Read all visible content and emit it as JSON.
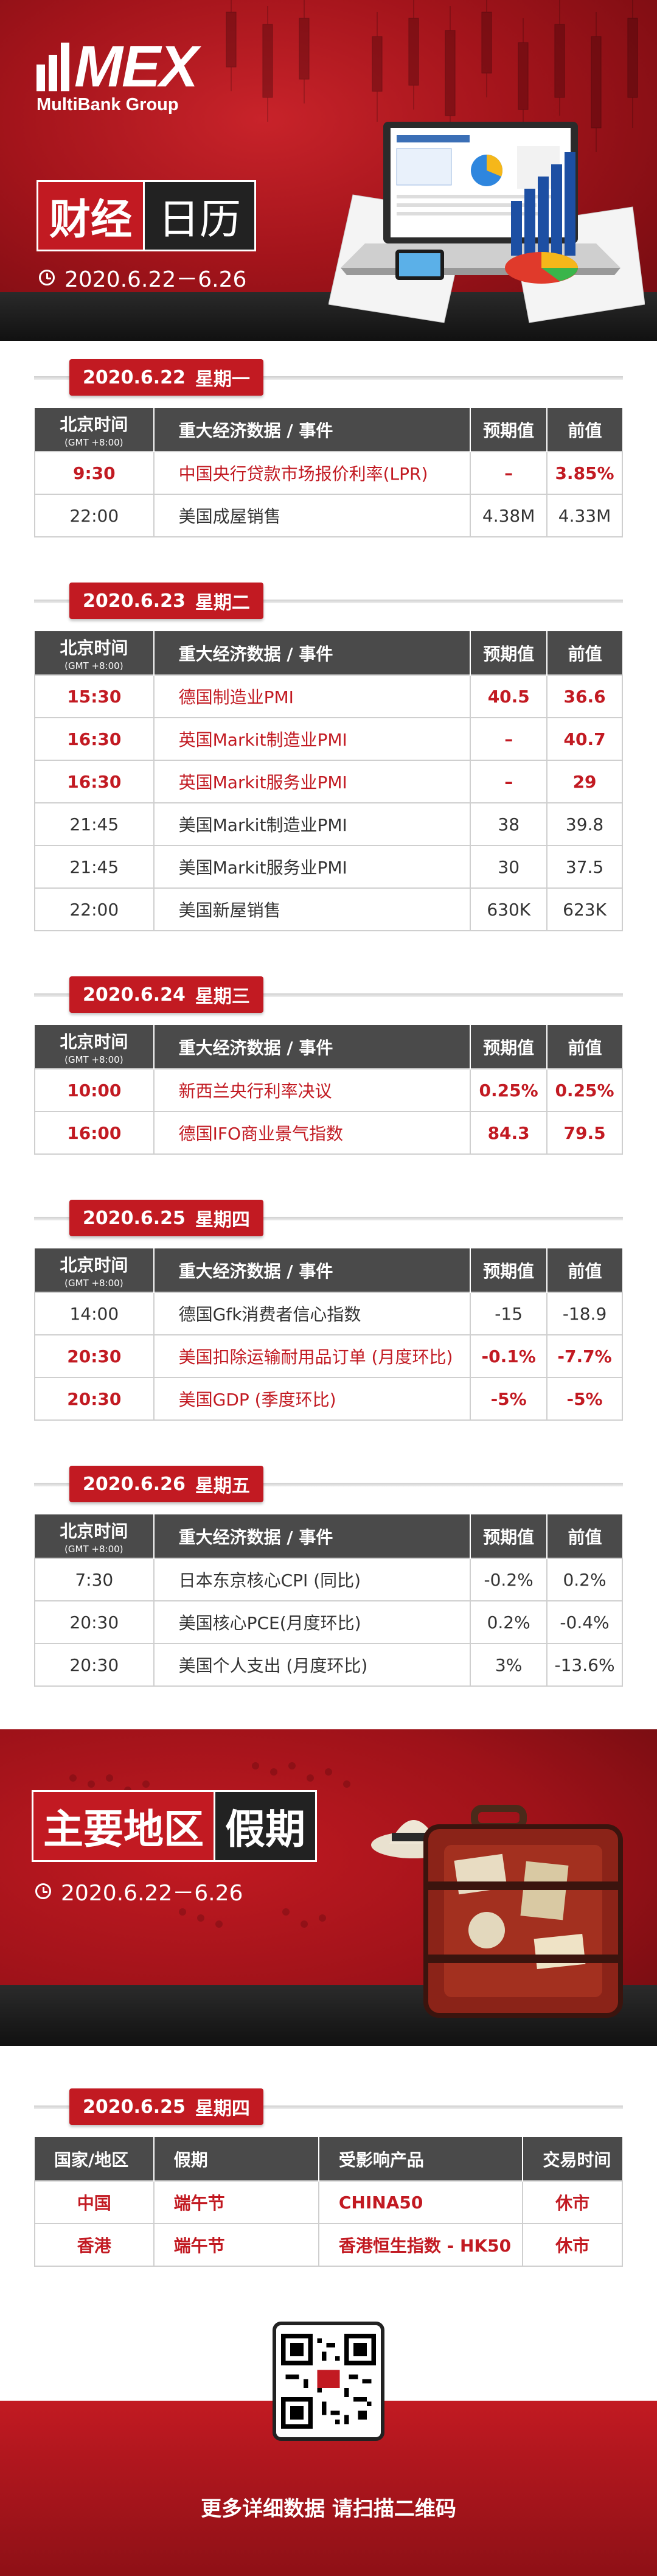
{
  "header": {
    "logo_text": "MEX",
    "logo_sub": "MultiBank Group",
    "title_part1": "财经",
    "title_part2": "日历",
    "date_range": "2020.6.22－6.26"
  },
  "table_headers": {
    "time": "北京时间",
    "gmt": "(GMT +8:00)",
    "event": "重大经济数据 / 事件",
    "forecast": "预期值",
    "previous": "前值"
  },
  "days": [
    {
      "date": "2020.6.22",
      "weekday": "星期一",
      "rows": [
        {
          "time": "9:30",
          "event": "中国央行贷款市场报价利率(LPR)",
          "forecast": "–",
          "previous": "3.85%",
          "highlight": true
        },
        {
          "time": "22:00",
          "event": "美国成屋销售",
          "forecast": "4.38M",
          "previous": "4.33M",
          "highlight": false
        }
      ]
    },
    {
      "date": "2020.6.23",
      "weekday": "星期二",
      "rows": [
        {
          "time": "15:30",
          "event": "德国制造业PMI",
          "forecast": "40.5",
          "previous": "36.6",
          "highlight": true
        },
        {
          "time": "16:30",
          "event": "英国Markit制造业PMI",
          "forecast": "–",
          "previous": "40.7",
          "highlight": true
        },
        {
          "time": "16:30",
          "event": "英国Markit服务业PMI",
          "forecast": "–",
          "previous": "29",
          "highlight": true
        },
        {
          "time": "21:45",
          "event": "美国Markit制造业PMI",
          "forecast": "38",
          "previous": "39.8",
          "highlight": false
        },
        {
          "time": "21:45",
          "event": "美国Markit服务业PMI",
          "forecast": "30",
          "previous": "37.5",
          "highlight": false
        },
        {
          "time": "22:00",
          "event": "美国新屋销售",
          "forecast": "630K",
          "previous": "623K",
          "highlight": false
        }
      ]
    },
    {
      "date": "2020.6.24",
      "weekday": "星期三",
      "rows": [
        {
          "time": "10:00",
          "event": "新西兰央行利率决议",
          "forecast": "0.25%",
          "previous": "0.25%",
          "highlight": true
        },
        {
          "time": "16:00",
          "event": "德国IFO商业景气指数",
          "forecast": "84.3",
          "previous": "79.5",
          "highlight": true
        }
      ]
    },
    {
      "date": "2020.6.25",
      "weekday": "星期四",
      "rows": [
        {
          "time": "14:00",
          "event": "德国Gfk消费者信心指数",
          "forecast": "-15",
          "previous": "-18.9",
          "highlight": false
        },
        {
          "time": "20:30",
          "event": "美国扣除运输耐用品订单 (月度环比)",
          "forecast": "-0.1%",
          "previous": "-7.7%",
          "highlight": true
        },
        {
          "time": "20:30",
          "event": "美国GDP (季度环比)",
          "forecast": "-5%",
          "previous": "-5%",
          "highlight": true
        }
      ]
    },
    {
      "date": "2020.6.26",
      "weekday": "星期五",
      "rows": [
        {
          "time": "7:30",
          "event": "日本东京核心CPI (同比)",
          "forecast": "-0.2%",
          "previous": "0.2%",
          "highlight": false
        },
        {
          "time": "20:30",
          "event": "美国核心PCE(月度环比)",
          "forecast": "0.2%",
          "previous": "-0.4%",
          "highlight": false
        },
        {
          "time": "20:30",
          "event": "美国个人支出 (月度环比)",
          "forecast": "3%",
          "previous": "-13.6%",
          "highlight": false
        }
      ]
    }
  ],
  "holiday_banner": {
    "title_part1": "主要地区",
    "title_part2": "假期",
    "date_range": "2020.6.22－6.26"
  },
  "holiday_section": {
    "date": "2020.6.25",
    "weekday": "星期四",
    "headers": {
      "region": "国家/地区",
      "holiday": "假期",
      "product": "受影响产品",
      "trading": "交易时间"
    },
    "rows": [
      {
        "region": "中国",
        "holiday": "端午节",
        "product": "CHINA50",
        "trading": "休市"
      },
      {
        "region": "香港",
        "holiday": "端午节",
        "product": "香港恒生指数 - HK50",
        "trading": "休市"
      }
    ]
  },
  "footer": {
    "text": "更多详细数据 请扫描二维码",
    "qr_badge": "MEX"
  },
  "colors": {
    "brand_red": "#c21a22",
    "header_gray": "#4a4a4a",
    "dark": "#222222"
  }
}
